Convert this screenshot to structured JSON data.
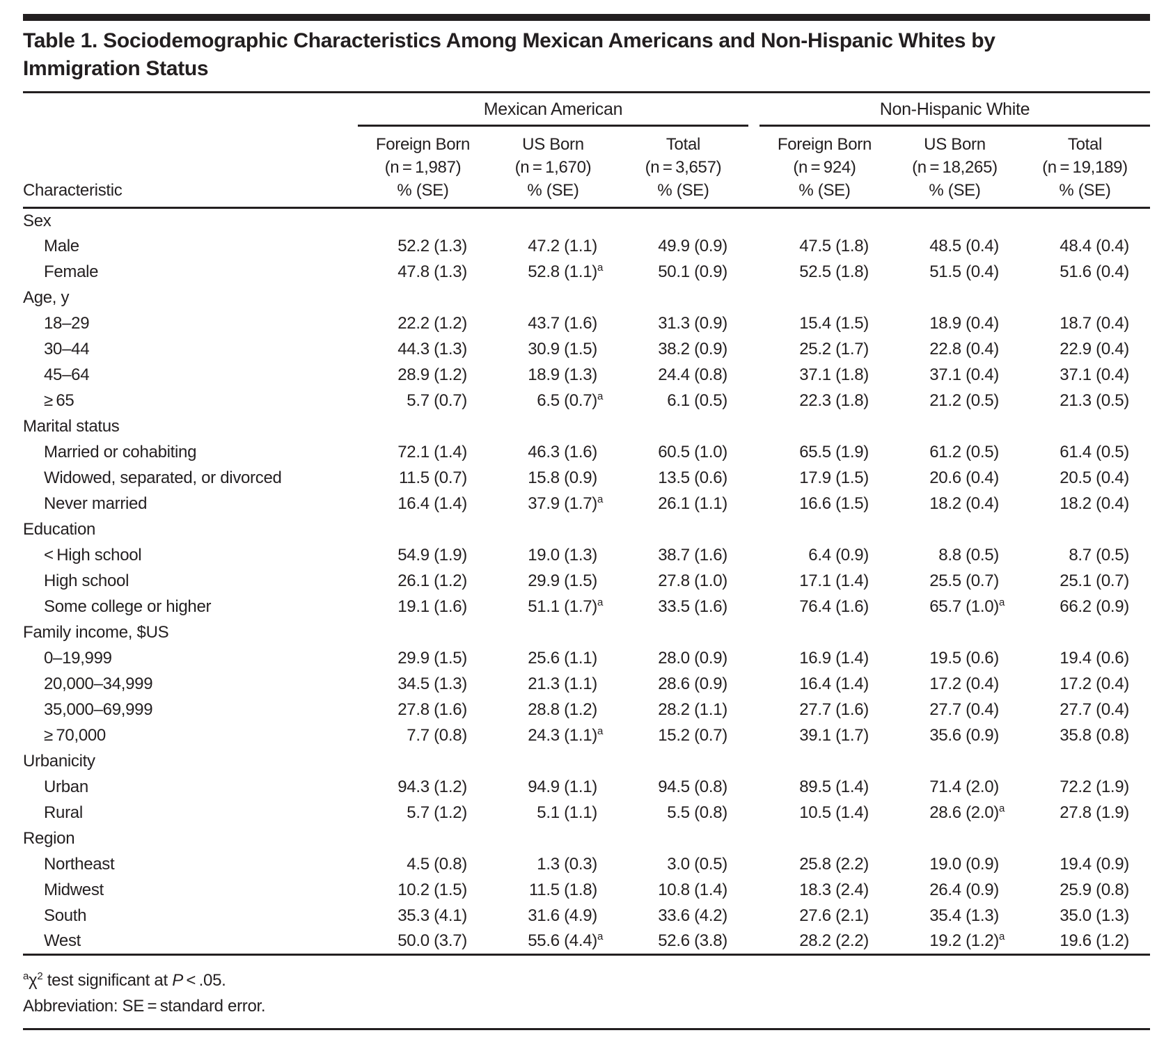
{
  "title": "Table 1. Sociodemographic Characteristics Among Mexican Americans and Non-Hispanic Whites by Immigration Status",
  "header": {
    "characteristic_label": "Characteristic",
    "groups": [
      {
        "label": "Mexican American",
        "columns": [
          {
            "label": "Foreign Born",
            "n": "(n = 1,987)",
            "unit": "% (SE)"
          },
          {
            "label": "US Born",
            "n": "(n = 1,670)",
            "unit": "% (SE)"
          },
          {
            "label": "Total",
            "n": "(n = 3,657)",
            "unit": "% (SE)"
          }
        ]
      },
      {
        "label": "Non-Hispanic White",
        "columns": [
          {
            "label": "Foreign Born",
            "n": "(n = 924)",
            "unit": "% (SE)"
          },
          {
            "label": "US Born",
            "n": "(n = 18,265)",
            "unit": "% (SE)"
          },
          {
            "label": "Total",
            "n": "(n = 19,189)",
            "unit": "% (SE)"
          }
        ]
      }
    ]
  },
  "sections": [
    {
      "header": "Sex",
      "rows": [
        {
          "label": "Male",
          "values": [
            "52.2 (1.3)",
            "47.2 (1.1)",
            "49.9 (0.9)",
            "47.5 (1.8)",
            "48.5 (0.4)",
            "48.4 (0.4)"
          ]
        },
        {
          "label": "Female",
          "values": [
            "47.8 (1.3)",
            "52.8 (1.1)^a",
            "50.1 (0.9)",
            "52.5 (1.8)",
            "51.5 (0.4)",
            "51.6 (0.4)"
          ]
        }
      ]
    },
    {
      "header": "Age, y",
      "rows": [
        {
          "label": "18–29",
          "values": [
            "22.2 (1.2)",
            "43.7 (1.6)",
            "31.3 (0.9)",
            "15.4 (1.5)",
            "18.9 (0.4)",
            "18.7 (0.4)"
          ]
        },
        {
          "label": "30–44",
          "values": [
            "44.3 (1.3)",
            "30.9 (1.5)",
            "38.2 (0.9)",
            "25.2 (1.7)",
            "22.8 (0.4)",
            "22.9 (0.4)"
          ]
        },
        {
          "label": "45–64",
          "values": [
            "28.9 (1.2)",
            "18.9 (1.3)",
            "24.4 (0.8)",
            "37.1 (1.8)",
            "37.1 (0.4)",
            "37.1 (0.4)"
          ]
        },
        {
          "label": "≥ 65",
          "values": [
            "5.7 (0.7)",
            "6.5 (0.7)^a",
            "6.1 (0.5)",
            "22.3 (1.8)",
            "21.2 (0.5)",
            "21.3 (0.5)"
          ]
        }
      ]
    },
    {
      "header": "Marital status",
      "rows": [
        {
          "label": "Married or cohabiting",
          "values": [
            "72.1 (1.4)",
            "46.3 (1.6)",
            "60.5 (1.0)",
            "65.5 (1.9)",
            "61.2 (0.5)",
            "61.4 (0.5)"
          ]
        },
        {
          "label": "Widowed, separated, or divorced",
          "values": [
            "11.5 (0.7)",
            "15.8 (0.9)",
            "13.5 (0.6)",
            "17.9 (1.5)",
            "20.6 (0.4)",
            "20.5 (0.4)"
          ]
        },
        {
          "label": "Never married",
          "values": [
            "16.4 (1.4)",
            "37.9 (1.7)^a",
            "26.1 (1.1)",
            "16.6 (1.5)",
            "18.2 (0.4)",
            "18.2 (0.4)"
          ]
        }
      ]
    },
    {
      "header": "Education",
      "rows": [
        {
          "label": "< High school",
          "values": [
            "54.9 (1.9)",
            "19.0 (1.3)",
            "38.7 (1.6)",
            "6.4 (0.9)",
            "8.8 (0.5)",
            "8.7 (0.5)"
          ]
        },
        {
          "label": "High school",
          "values": [
            "26.1 (1.2)",
            "29.9 (1.5)",
            "27.8 (1.0)",
            "17.1 (1.4)",
            "25.5 (0.7)",
            "25.1 (0.7)"
          ]
        },
        {
          "label": "Some college or higher",
          "values": [
            "19.1 (1.6)",
            "51.1 (1.7)^a",
            "33.5 (1.6)",
            "76.4 (1.6)",
            "65.7 (1.0)^a",
            "66.2 (0.9)"
          ]
        }
      ]
    },
    {
      "header": "Family income, $US",
      "rows": [
        {
          "label": "0–19,999",
          "values": [
            "29.9 (1.5)",
            "25.6 (1.1)",
            "28.0 (0.9)",
            "16.9 (1.4)",
            "19.5 (0.6)",
            "19.4 (0.6)"
          ]
        },
        {
          "label": "20,000–34,999",
          "values": [
            "34.5 (1.3)",
            "21.3 (1.1)",
            "28.6 (0.9)",
            "16.4 (1.4)",
            "17.2 (0.4)",
            "17.2 (0.4)"
          ]
        },
        {
          "label": "35,000–69,999",
          "values": [
            "27.8 (1.6)",
            "28.8 (1.2)",
            "28.2 (1.1)",
            "27.7 (1.6)",
            "27.7 (0.4)",
            "27.7 (0.4)"
          ]
        },
        {
          "label": "≥ 70,000",
          "values": [
            "7.7 (0.8)",
            "24.3 (1.1)^a",
            "15.2 (0.7)",
            "39.1 (1.7)",
            "35.6 (0.9)",
            "35.8 (0.8)"
          ]
        }
      ]
    },
    {
      "header": "Urbanicity",
      "rows": [
        {
          "label": "Urban",
          "values": [
            "94.3 (1.2)",
            "94.9 (1.1)",
            "94.5 (0.8)",
            "89.5 (1.4)",
            "71.4 (2.0)",
            "72.2 (1.9)"
          ]
        },
        {
          "label": "Rural",
          "values": [
            "5.7 (1.2)",
            "5.1 (1.1)",
            "5.5 (0.8)",
            "10.5 (1.4)",
            "28.6 (2.0)^a",
            "27.8 (1.9)"
          ]
        }
      ]
    },
    {
      "header": "Region",
      "rows": [
        {
          "label": "Northeast",
          "values": [
            "4.5 (0.8)",
            "1.3 (0.3)",
            "3.0 (0.5)",
            "25.8 (2.2)",
            "19.0 (0.9)",
            "19.4 (0.9)"
          ]
        },
        {
          "label": "Midwest",
          "values": [
            "10.2 (1.5)",
            "11.5 (1.8)",
            "10.8 (1.4)",
            "18.3 (2.4)",
            "26.4 (0.9)",
            "25.9 (0.8)"
          ]
        },
        {
          "label": "South",
          "values": [
            "35.3 (4.1)",
            "31.6 (4.9)",
            "33.6 (4.2)",
            "27.6 (2.1)",
            "35.4 (1.3)",
            "35.0 (1.3)"
          ]
        },
        {
          "label": "West",
          "values": [
            "50.0 (3.7)",
            "55.6 (4.4)^a",
            "52.6 (3.8)",
            "28.2 (2.2)",
            "19.2 (1.2)^a",
            "19.6 (1.2)"
          ]
        }
      ]
    }
  ],
  "footnotes": [
    {
      "parts": [
        {
          "t": "a",
          "sup": true
        },
        {
          "t": "χ"
        },
        {
          "t": "2",
          "sup": true
        },
        {
          "t": " test significant at "
        },
        {
          "t": "P",
          "italic": true
        },
        {
          "t": " < .05."
        }
      ]
    },
    {
      "parts": [
        {
          "t": "Abbreviation: SE = standard error."
        }
      ]
    }
  ],
  "colors": {
    "text": "#231f20",
    "rule": "#231f20",
    "background": "#ffffff"
  }
}
